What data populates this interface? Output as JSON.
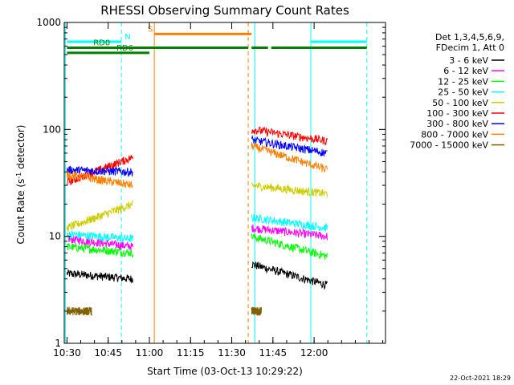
{
  "chart_data": {
    "type": "line",
    "title": "RHESSI Observing Summary Count Rates",
    "xlabel": "Start Time (03-Oct-13 10:29:22)",
    "ylabel": "Count Rate (s",
    "ylabel_sup": "-1",
    "ylabel_tail": " detector",
    "ylabel_close": ")",
    "y_scale": "log",
    "ylim": [
      1,
      1000
    ],
    "y_ticks": [
      {
        "v": 1,
        "label": "1"
      },
      {
        "v": 10,
        "label": "10"
      },
      {
        "v": 100,
        "label": "100"
      },
      {
        "v": 1000,
        "label": "1000"
      }
    ],
    "xlim": [
      10.4833,
      12.4333
    ],
    "x_ticks": [
      {
        "v": 10.5,
        "label": "10:30"
      },
      {
        "v": 10.75,
        "label": "10:45"
      },
      {
        "v": 11.0,
        "label": "11:00"
      },
      {
        "v": 11.25,
        "label": "11:15"
      },
      {
        "v": 11.5,
        "label": "11:30"
      },
      {
        "v": 11.75,
        "label": "11:45"
      },
      {
        "v": 12.0,
        "label": "12:00"
      }
    ],
    "grid": false,
    "legend_placement": "right",
    "legend_header": [
      "Det 1,3,4,5,6,9,",
      "FDecim 1, Att 0"
    ],
    "series": [
      {
        "name": "3 - 6 keV",
        "color": "#000000",
        "segments": [
          [
            10.5,
            10.9,
            4.5,
            4.0
          ],
          [
            11.62,
            12.08,
            5.5,
            3.5
          ]
        ]
      },
      {
        "name": "6 - 12 keV",
        "color": "#ff00ff",
        "segments": [
          [
            10.5,
            10.9,
            9.5,
            8.0
          ],
          [
            11.62,
            12.08,
            12.0,
            10.0
          ]
        ]
      },
      {
        "name": "12 - 25 keV",
        "color": "#00ff00",
        "segments": [
          [
            10.5,
            10.9,
            8.0,
            7.0
          ],
          [
            11.62,
            12.08,
            10.0,
            6.5
          ]
        ]
      },
      {
        "name": "25 - 50 keV",
        "color": "#00ffff",
        "segments": [
          [
            10.5,
            10.9,
            10.5,
            9.5
          ],
          [
            11.62,
            12.08,
            15.0,
            12.0
          ]
        ]
      },
      {
        "name": "50 - 100 keV",
        "color": "#cccc00",
        "segments": [
          [
            10.5,
            10.9,
            12.0,
            20.0
          ],
          [
            11.62,
            12.08,
            30.0,
            25.0
          ]
        ]
      },
      {
        "name": "100 - 300 keV",
        "color": "#ff0000",
        "segments": [
          [
            10.5,
            10.9,
            32.0,
            55.0
          ],
          [
            11.62,
            12.08,
            100.0,
            78.0
          ]
        ]
      },
      {
        "name": "300 - 800 keV",
        "color": "#0000ff",
        "segments": [
          [
            10.5,
            10.9,
            42.0,
            40.0
          ],
          [
            11.62,
            12.08,
            80.0,
            60.0
          ]
        ]
      },
      {
        "name": "800 - 7000 keV",
        "color": "#ff8000",
        "segments": [
          [
            10.5,
            10.9,
            38.0,
            30.0
          ],
          [
            11.62,
            12.08,
            70.0,
            42.0
          ]
        ]
      },
      {
        "name": "7000 - 15000 keV",
        "color": "#806000",
        "segments": [
          [
            10.5,
            10.65,
            2.0,
            2.0
          ],
          [
            11.62,
            11.68,
            2.0,
            2.0
          ]
        ]
      }
    ],
    "flags": [
      {
        "label": "N",
        "color": "#00ffff",
        "level": 660,
        "segments": [
          [
            10.5,
            10.83
          ],
          [
            11.98,
            12.32
          ]
        ],
        "label_at": 10.85
      },
      {
        "label": "S",
        "color": "#ff8000",
        "level": 780,
        "segments": [
          [
            11.03,
            11.62
          ]
        ],
        "label_at": 10.99
      },
      {
        "label": "RD0",
        "color": "#008000",
        "level": 580,
        "segments": [
          [
            10.5,
            11.6
          ],
          [
            11.62,
            11.72
          ],
          [
            11.74,
            12.32
          ]
        ],
        "label_at": 10.66
      },
      {
        "label": "RD6",
        "color": "#008000",
        "level": 520,
        "segments": [
          [
            10.5,
            11.0
          ]
        ],
        "label_at": 10.8
      }
    ],
    "vlines": [
      {
        "t": 10.49,
        "color": "#00ffff",
        "dash": false
      },
      {
        "t": 10.83,
        "color": "#00ffff",
        "dash": true
      },
      {
        "t": 11.03,
        "color": "#ff8000",
        "dash": false
      },
      {
        "t": 11.6,
        "color": "#ff8000",
        "dash": true
      },
      {
        "t": 11.64,
        "color": "#00ffff",
        "dash": false
      },
      {
        "t": 11.98,
        "color": "#00ffff",
        "dash": false
      },
      {
        "t": 12.32,
        "color": "#00ffff",
        "dash": true
      }
    ],
    "footer": "22-Oct-2021 18:29"
  }
}
